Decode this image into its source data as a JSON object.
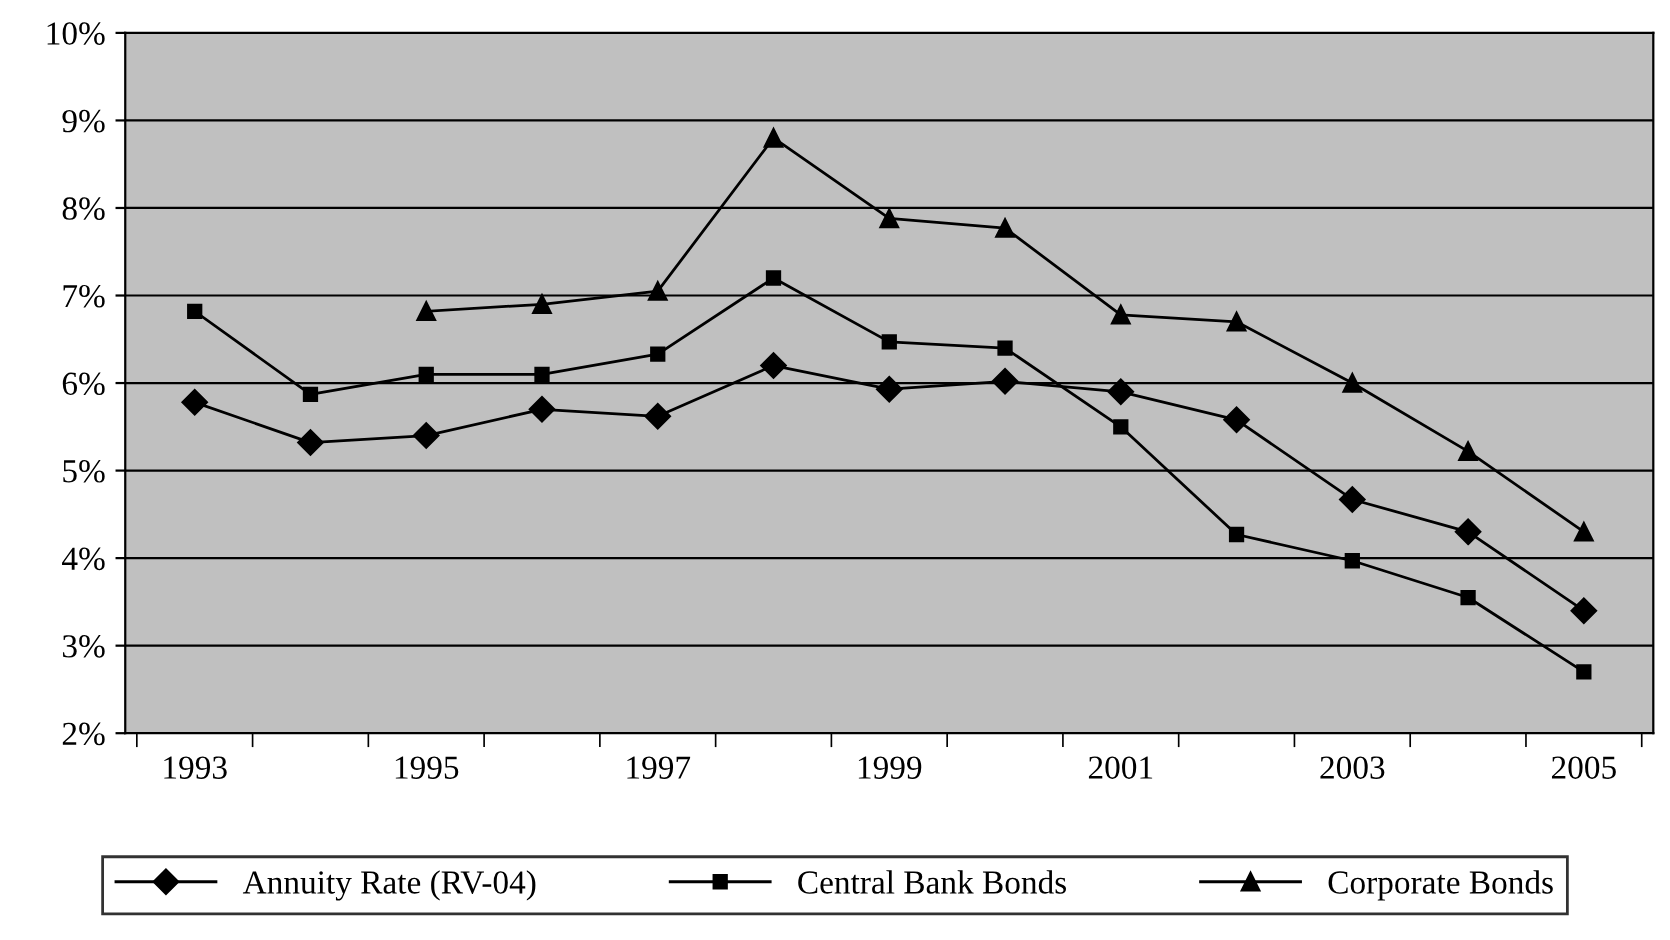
{
  "chart_data": {
    "type": "line",
    "categories": [
      "1993",
      null,
      "1995",
      null,
      "1997",
      null,
      "1999",
      null,
      "2001",
      null,
      "2003",
      null,
      "2005"
    ],
    "series": [
      {
        "name": "Annuity Rate (RV-04)",
        "color": "#000000",
        "marker": "diamond",
        "values": [
          5.78,
          5.32,
          5.4,
          5.7,
          5.62,
          6.2,
          5.93,
          6.02,
          5.9,
          5.58,
          4.67,
          4.3,
          3.4
        ]
      },
      {
        "name": "Central Bank Bonds",
        "color": "#000000",
        "marker": "square",
        "values": [
          6.82,
          5.87,
          6.1,
          6.1,
          6.33,
          7.2,
          6.47,
          6.4,
          5.5,
          4.27,
          3.97,
          3.55,
          2.7
        ]
      },
      {
        "name": "Corporate Bonds",
        "color": "#000000",
        "marker": "triangle",
        "values": [
          null,
          null,
          6.82,
          6.9,
          7.05,
          8.8,
          7.88,
          7.77,
          6.78,
          6.7,
          6.0,
          5.22,
          4.3
        ]
      }
    ],
    "ylim": [
      2,
      10
    ],
    "yticks": [
      {
        "value": 2,
        "label": "2%"
      },
      {
        "value": 3,
        "label": "3%"
      },
      {
        "value": 4,
        "label": "4%"
      },
      {
        "value": 5,
        "label": "5%"
      },
      {
        "value": 6,
        "label": "6%"
      },
      {
        "value": 7,
        "label": "7%"
      },
      {
        "value": 8,
        "label": "8%"
      },
      {
        "value": 9,
        "label": "9%"
      },
      {
        "value": 10,
        "label": "10%"
      }
    ],
    "grid": "y",
    "legend": "bottom",
    "line_style": "solid"
  }
}
